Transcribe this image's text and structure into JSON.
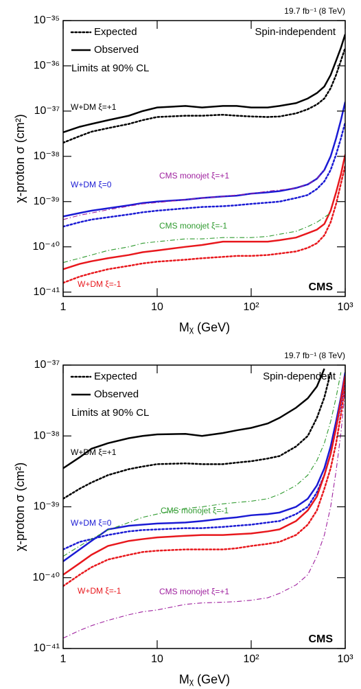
{
  "chart_data": [
    {
      "type": "line",
      "xscale": "log",
      "yscale": "log",
      "lumi": "19.7 fb⁻¹ (8 TeV)",
      "label": "Spin-independent",
      "note": "Limits at 90% CL",
      "experiment": "CMS",
      "xlabel": "Mᵪ (GeV)",
      "ylabel": "χ-proton σ (cm²)",
      "legend": [
        {
          "label": "Expected",
          "style": "dotted"
        },
        {
          "label": "Observed",
          "style": "solid"
        }
      ],
      "xlim": [
        1,
        1000
      ],
      "xticks": [
        1,
        10,
        {
          "value": 100,
          "label": "10²"
        },
        {
          "value": 1000,
          "label": "10³"
        }
      ],
      "ylim": [
        8e-42,
        1e-35
      ],
      "yticks": [
        {
          "value": 1e-41,
          "label": "10⁻⁴¹"
        },
        {
          "value": 1e-40,
          "label": "10⁻⁴⁰"
        },
        {
          "value": 1e-39,
          "label": "10⁻³⁹"
        },
        {
          "value": 1e-38,
          "label": "10⁻³⁸"
        },
        {
          "value": 1e-37,
          "label": "10⁻³⁷"
        },
        {
          "value": 1e-36,
          "label": "10⁻³⁶"
        },
        {
          "value": 1e-35,
          "label": "10⁻³⁵"
        }
      ],
      "x": [
        1,
        1.5,
        2,
        3,
        5,
        7,
        10,
        20,
        30,
        50,
        70,
        100,
        150,
        200,
        300,
        400,
        500,
        600,
        700,
        800,
        900,
        1000
      ],
      "series": [
        {
          "name": "W+DM ξ=+1",
          "color": "#000000",
          "style": "solid",
          "values": [
            3.4e-38,
            4.5e-38,
            5.2e-38,
            6.3e-38,
            7.9e-38,
            1e-37,
            1.2e-37,
            1.3e-37,
            1.2e-37,
            1.3e-37,
            1.3e-37,
            1.2e-37,
            1.2e-37,
            1.3e-37,
            1.5e-37,
            1.9e-37,
            2.5e-37,
            3.5e-37,
            6.3e-37,
            1.3e-36,
            2.5e-36,
            5e-36
          ]
        },
        {
          "color": "#000000",
          "style": "dotted",
          "values": [
            2e-38,
            2.8e-38,
            3.5e-38,
            4.2e-38,
            5.2e-38,
            6.3e-38,
            7.4e-38,
            7.9e-38,
            7.9e-38,
            8.3e-38,
            7.9e-38,
            7.6e-38,
            7.4e-38,
            7.6e-38,
            8.9e-38,
            1.1e-37,
            1.4e-37,
            1.9e-37,
            3.2e-37,
            6.3e-37,
            1.3e-36,
            2.5e-36
          ]
        },
        {
          "name": "W+DM ξ=0",
          "color": "#1a1ad4",
          "style": "solid",
          "values": [
            4.7e-40,
            5.6e-40,
            6.3e-40,
            7.1e-40,
            8.3e-40,
            9.3e-40,
            1e-39,
            1.1e-39,
            1.2e-39,
            1.3e-39,
            1.35e-39,
            1.5e-39,
            1.6e-39,
            1.7e-39,
            2e-39,
            2.4e-39,
            3.2e-39,
            5e-39,
            1e-38,
            2.5e-38,
            6.3e-38,
            1.6e-37
          ]
        },
        {
          "color": "#1a1ad4",
          "style": "dotted",
          "values": [
            2.8e-40,
            3.5e-40,
            4e-40,
            4.5e-40,
            5.2e-40,
            5.8e-40,
            6.3e-40,
            7.1e-40,
            7.6e-40,
            7.9e-40,
            8.3e-40,
            8.9e-40,
            9.5e-40,
            1e-39,
            1.2e-39,
            1.4e-39,
            1.9e-39,
            2.8e-39,
            5e-39,
            1.1e-38,
            2.5e-38,
            5.6e-38
          ]
        },
        {
          "name": "W+DM ξ=-1",
          "color": "#e8171c",
          "style": "solid",
          "values": [
            3.2e-41,
            4.2e-41,
            4.8e-41,
            5.6e-41,
            6.6e-41,
            7.6e-41,
            8.3e-41,
            1e-40,
            1.1e-40,
            1.3e-40,
            1.3e-40,
            1.3e-40,
            1.3e-40,
            1.4e-40,
            1.6e-40,
            2e-40,
            2.4e-40,
            3.2e-40,
            6.3e-40,
            1.6e-39,
            4e-39,
            1.1e-38
          ]
        },
        {
          "color": "#e8171c",
          "style": "dotted",
          "values": [
            1.6e-41,
            2.2e-41,
            2.6e-41,
            3.2e-41,
            3.8e-41,
            4.3e-41,
            4.7e-41,
            5.2e-41,
            5.6e-41,
            6e-41,
            6.3e-41,
            6.3e-41,
            6.6e-41,
            7.1e-41,
            7.9e-41,
            9.5e-41,
            1.2e-40,
            1.8e-40,
            3.5e-40,
            8.9e-40,
            2.5e-39,
            6.3e-39
          ]
        },
        {
          "name": "CMS monojet ξ=+1",
          "color": "#9e1f9e",
          "style": "dashdot",
          "values": [
            4e-40,
            5e-40,
            5.6e-40,
            6.6e-40,
            7.9e-40,
            8.9e-40,
            9.5e-40,
            1.1e-39,
            1.2e-39,
            1.3e-39,
            1.4e-39,
            1.5e-39,
            1.7e-39,
            1.8e-39,
            2e-39,
            2.4e-39,
            3.2e-39,
            5e-39,
            null,
            null,
            null,
            null
          ]
        },
        {
          "name": "CMS monojet ξ=-1",
          "color": "#2e9a2e",
          "style": "dashdot",
          "values": [
            4.5e-41,
            5.6e-41,
            6.6e-41,
            8.3e-41,
            1e-40,
            1.2e-40,
            1.3e-40,
            1.5e-40,
            1.5e-40,
            1.6e-40,
            1.6e-40,
            1.6e-40,
            1.7e-40,
            1.9e-40,
            2.2e-40,
            2.8e-40,
            3.5e-40,
            4.5e-40,
            5.6e-40,
            null,
            null,
            null
          ]
        }
      ]
    },
    {
      "type": "line",
      "xscale": "log",
      "yscale": "log",
      "lumi": "19.7 fb⁻¹ (8 TeV)",
      "label": "Spin-dependent",
      "note": "Limits at 90% CL",
      "experiment": "CMS",
      "xlabel": "Mᵪ (GeV)",
      "ylabel": "χ-proton σ (cm²)",
      "legend": [
        {
          "label": "Expected",
          "style": "dotted"
        },
        {
          "label": "Observed",
          "style": "solid"
        }
      ],
      "xlim": [
        1,
        1000
      ],
      "xticks": [
        1,
        10,
        {
          "value": 100,
          "label": "10²"
        },
        {
          "value": 1000,
          "label": "10³"
        }
      ],
      "ylim": [
        1e-41,
        1e-37
      ],
      "yticks": [
        {
          "value": 1e-41,
          "label": "10⁻⁴¹"
        },
        {
          "value": 1e-40,
          "label": "10⁻⁴⁰"
        },
        {
          "value": 1e-39,
          "label": "10⁻³⁹"
        },
        {
          "value": 1e-38,
          "label": "10⁻³⁸"
        },
        {
          "value": 1e-37,
          "label": "10⁻³⁷"
        }
      ],
      "x": [
        1,
        1.5,
        2,
        3,
        5,
        7,
        10,
        20,
        30,
        50,
        70,
        100,
        150,
        200,
        300,
        400,
        500,
        600,
        700,
        800,
        900,
        1000
      ],
      "series": [
        {
          "name": "W+DM ξ=+1",
          "color": "#000000",
          "style": "solid",
          "values": [
            3.5e-39,
            5e-39,
            6.6e-39,
            7.9e-39,
            9.3e-39,
            1e-38,
            1.05e-38,
            1.07e-38,
            1e-38,
            1.1e-38,
            1.2e-38,
            1.3e-38,
            1.5e-38,
            1.8e-38,
            2.5e-38,
            3.4e-38,
            5e-38,
            8.9e-38,
            null,
            null,
            null,
            null
          ]
        },
        {
          "color": "#000000",
          "style": "dotted",
          "values": [
            1.3e-39,
            1.8e-39,
            2.2e-39,
            2.8e-39,
            3.4e-39,
            3.7e-39,
            4e-39,
            4.1e-39,
            4e-39,
            4e-39,
            4.2e-39,
            4.4e-39,
            4.8e-39,
            5.2e-39,
            7.1e-39,
            1e-38,
            1.8e-38,
            3.5e-38,
            7.9e-38,
            null,
            null,
            null
          ]
        },
        {
          "name": "W+DM ξ=0",
          "color": "#1a1ad4",
          "style": "solid",
          "values": [
            1.7e-40,
            2.5e-40,
            3.3e-40,
            4.8e-40,
            5.4e-40,
            5.6e-40,
            5.8e-40,
            6e-40,
            6.3e-40,
            6.8e-40,
            7.1e-40,
            7.6e-40,
            7.9e-40,
            8.3e-40,
            1e-39,
            1.3e-39,
            2e-39,
            3.5e-39,
            7.1e-39,
            1.6e-38,
            3.5e-38,
            7.9e-38
          ]
        },
        {
          "color": "#1a1ad4",
          "style": "dotted",
          "values": [
            2.5e-40,
            3.2e-40,
            3.5e-40,
            4e-40,
            4.5e-40,
            4.7e-40,
            4.8e-40,
            5e-40,
            5e-40,
            5.2e-40,
            5.4e-40,
            5.6e-40,
            6e-40,
            6.3e-40,
            7.9e-40,
            1e-39,
            1.6e-39,
            2.8e-39,
            5.6e-39,
            1.3e-38,
            2.8e-38,
            6.3e-38
          ]
        },
        {
          "name": "W+DM ξ=-1",
          "color": "#e8171c",
          "style": "solid",
          "values": [
            1.1e-40,
            1.6e-40,
            2.1e-40,
            2.8e-40,
            3.3e-40,
            3.5e-40,
            3.7e-40,
            3.9e-40,
            4e-40,
            4e-40,
            4.1e-40,
            4.2e-40,
            4.5e-40,
            4.8e-40,
            6.3e-40,
            8.9e-40,
            1.4e-39,
            2.8e-39,
            5.6e-39,
            1.3e-38,
            3.2e-38,
            7.1e-38
          ]
        },
        {
          "color": "#e8171c",
          "style": "dotted",
          "values": [
            7.6e-41,
            1.1e-40,
            1.4e-40,
            1.8e-40,
            2.1e-40,
            2.3e-40,
            2.4e-40,
            2.5e-40,
            2.5e-40,
            2.5e-40,
            2.6e-40,
            2.8e-40,
            3e-40,
            3.2e-40,
            4e-40,
            5.6e-40,
            8.9e-40,
            1.8e-39,
            3.5e-39,
            7.9e-39,
            2e-38,
            5e-38
          ]
        },
        {
          "name": "CMS monojet ξ=+1",
          "color": "#9e1f9e",
          "style": "dashdot",
          "values": [
            1.4e-41,
            1.8e-41,
            2.1e-41,
            2.5e-41,
            3e-41,
            3.3e-41,
            3.5e-41,
            4.2e-41,
            4.4e-41,
            4.5e-41,
            4.6e-41,
            4.8e-41,
            5.2e-41,
            6e-41,
            7.9e-41,
            1.1e-40,
            2e-40,
            4e-40,
            1e-39,
            3.2e-39,
            1.1e-38,
            4.5e-38
          ]
        },
        {
          "name": "CMS monojet ξ=-1",
          "color": "#2e9a2e",
          "style": "dashdot",
          "values": [
            2e-40,
            2.8e-40,
            3.5e-40,
            4.7e-40,
            6e-40,
            7.1e-40,
            7.9e-40,
            9.5e-40,
            1e-39,
            1.1e-39,
            1.15e-39,
            1.2e-39,
            1.3e-39,
            1.5e-39,
            2e-39,
            2.8e-39,
            4.5e-39,
            7.9e-39,
            1.6e-38,
            3.5e-38,
            7.9e-38,
            null
          ]
        }
      ]
    }
  ]
}
